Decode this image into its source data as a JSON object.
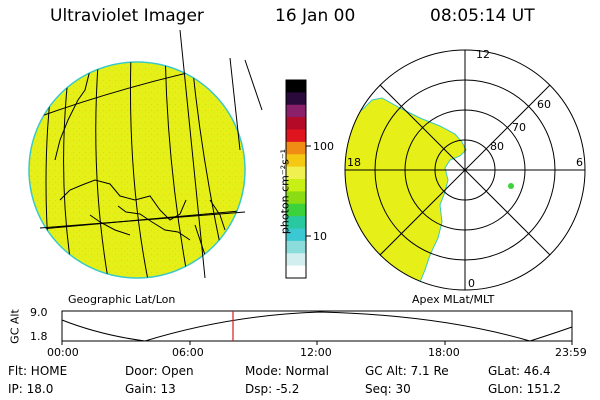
{
  "header": {
    "instrument": "Ultraviolet Imager",
    "date": "16 Jan 00",
    "time": "08:05:14 UT"
  },
  "geo_panel": {
    "label": "Geographic Lat/Lon",
    "fill_color": "#e6f018",
    "edge_color": "#39c8c8"
  },
  "colorbar": {
    "unit_label": "photon cm⁻²s⁻¹",
    "tick_100": "100",
    "tick_10": "10",
    "colors_top_to_bottom": [
      "#000000",
      "#2a0a3a",
      "#8a1f6a",
      "#b40a28",
      "#e0141e",
      "#f08c14",
      "#f5c814",
      "#f0f050",
      "#c8f014",
      "#8cdc14",
      "#3cd23c",
      "#28c8a0",
      "#3cc8d2",
      "#8cdcdc",
      "#d2eeee",
      "#ffffff"
    ]
  },
  "polar_panel": {
    "label": "Apex  MLat/MLT",
    "mlt_12": "12",
    "mlt_18": "18",
    "mlt_6": "6",
    "mlt_0": "0",
    "lat_60": "60",
    "lat_70": "70",
    "lat_80": "80"
  },
  "altitude_strip": {
    "axis_title": "GC Alt",
    "y_top": "9.0",
    "y_bottom": "1.8",
    "x_ticks": [
      "00:00",
      "06:00",
      "12:00",
      "18:00",
      "23:59"
    ],
    "marker_color": "#d21e1e"
  },
  "status": {
    "flt": "Flt: HOME",
    "ip": "IP: 18.0",
    "door": "Door: Open",
    "gain": "Gain: 13",
    "mode": "Mode: Normal",
    "dsp": "Dsp:   -5.2",
    "gc_alt": "GC Alt: 7.1 Re",
    "seq": "Seq: 30",
    "glat": "GLat:   46.4",
    "glon": "GLon: 151.2"
  }
}
